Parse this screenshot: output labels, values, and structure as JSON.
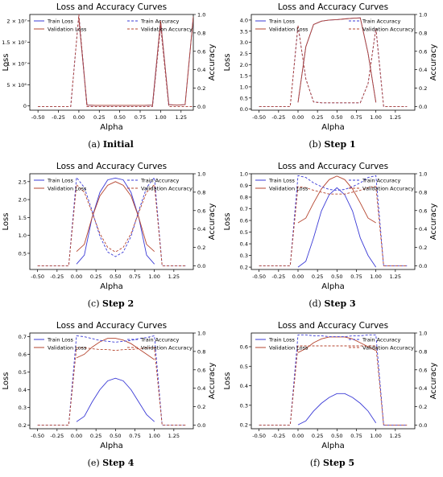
{
  "figure": {
    "alpha": [
      -0.5,
      -0.4,
      -0.3,
      -0.2,
      -0.1,
      0.0,
      0.1,
      0.2,
      0.3,
      0.4,
      0.5,
      0.6,
      0.7,
      0.8,
      0.9,
      1.0,
      1.1,
      1.2,
      1.3,
      1.4
    ],
    "legend": {
      "train_loss": "Train Loss",
      "val_loss": "Validation Loss",
      "train_acc": "Train Accuracy",
      "val_acc": "Validation Accuracy"
    },
    "colors": {
      "train_loss": "#3b3bd6",
      "val_loss": "#b5452f",
      "train_acc": "#3b3bd6",
      "val_acc": "#b5452f"
    }
  },
  "chart_data": [
    {
      "type": "line",
      "title": "Loss and Accuracy Curves",
      "caption_label": "(a)",
      "caption_text": "Initial",
      "xlabel": "Alpha",
      "ylabel": "Loss",
      "y2label": "Accuracy",
      "xlim": [
        -0.6,
        1.4
      ],
      "ylim": [
        -1000000.0,
        21500000.0
      ],
      "y2lim": [
        -0.04,
        1.0
      ],
      "xticks": [
        -0.5,
        -0.25,
        0.0,
        0.25,
        0.5,
        0.75,
        1.0,
        1.25
      ],
      "xtick_labels": [
        "-0.50",
        "-0.25",
        "0.00",
        "0.25",
        "0.50",
        "0.75",
        "1.00",
        "1.25"
      ],
      "yticks": [
        0,
        5000000,
        10000000,
        15000000,
        20000000
      ],
      "ytick_labels": [
        "0",
        "5 × 10⁶",
        "1 × 10⁷",
        "1.5 × 10⁷",
        "2 × 10⁷"
      ],
      "y2ticks": [
        0.0,
        0.2,
        0.4,
        0.6,
        0.8,
        1.0
      ],
      "y2tick_labels": [
        "0.0",
        "0.2",
        "0.4",
        "0.6",
        "0.8",
        "1.0"
      ],
      "legend_loc": "top",
      "loss_x": [
        0.0,
        0.1,
        0.2,
        0.3,
        0.4,
        0.5,
        0.6,
        0.7,
        0.8,
        0.9,
        1.0,
        1.1,
        1.2,
        1.3,
        1.4
      ],
      "train_loss": [
        20500000,
        200000,
        150000,
        150000,
        150000,
        150000,
        150000,
        150000,
        150000,
        200000,
        20000000,
        300000,
        200000,
        300000,
        21000000
      ],
      "val_loss": [
        20500000,
        200000,
        150000,
        150000,
        150000,
        150000,
        150000,
        150000,
        150000,
        200000,
        20000000,
        300000,
        200000,
        300000,
        21000000
      ],
      "train_acc": [
        0.0,
        0.0,
        0.0,
        0.0,
        0.0,
        1.0,
        0.0,
        0.0,
        0.0,
        0.0,
        0.0,
        0.0,
        0.0,
        0.0,
        0.0,
        0.88,
        0.0,
        0.0,
        0.0,
        0.0
      ],
      "val_acc": [
        0.0,
        0.0,
        0.0,
        0.0,
        0.0,
        1.0,
        0.0,
        0.0,
        0.0,
        0.0,
        0.0,
        0.0,
        0.0,
        0.0,
        0.0,
        0.88,
        0.0,
        0.0,
        0.0,
        0.0
      ]
    },
    {
      "type": "line",
      "title": "Loss and Accuracy Curves",
      "caption_label": "(b)",
      "caption_text": "Step 1",
      "xlabel": "Alpha",
      "ylabel": "Loss",
      "y2label": "Accuracy",
      "xlim": [
        -0.6,
        1.5
      ],
      "ylim": [
        -0.05,
        4.25
      ],
      "y2lim": [
        -0.04,
        1.0
      ],
      "xticks": [
        -0.5,
        -0.25,
        0.0,
        0.25,
        0.5,
        0.75,
        1.0,
        1.25
      ],
      "xtick_labels": [
        "-0.50",
        "-0.25",
        "0.00",
        "0.25",
        "0.50",
        "0.75",
        "1.00",
        "1.25"
      ],
      "yticks": [
        0.0,
        0.5,
        1.0,
        1.5,
        2.0,
        2.5,
        3.0,
        3.5,
        4.0
      ],
      "ytick_labels": [
        "0.0",
        "0.5",
        "1.0",
        "1.5",
        "2.0",
        "2.5",
        "3.0",
        "3.5",
        "4.0"
      ],
      "y2ticks": [
        0.0,
        0.2,
        0.4,
        0.6,
        0.8,
        1.0
      ],
      "y2tick_labels": [
        "0.0",
        "0.2",
        "0.4",
        "0.6",
        "0.8",
        "1.0"
      ],
      "legend_loc": "top",
      "loss_x": [
        0.0,
        0.1,
        0.2,
        0.3,
        0.4,
        0.5,
        0.6,
        0.7,
        0.8,
        0.9,
        1.0
      ],
      "train_loss": [
        0.3,
        2.8,
        3.8,
        3.95,
        4.0,
        4.02,
        4.05,
        4.08,
        4.1,
        2.5,
        0.3
      ],
      "val_loss": [
        0.3,
        2.8,
        3.8,
        3.95,
        4.0,
        4.02,
        4.05,
        4.08,
        4.1,
        2.5,
        0.3
      ],
      "train_acc": [
        0.0,
        0.0,
        0.0,
        0.0,
        0.0,
        0.88,
        0.3,
        0.05,
        0.04,
        0.04,
        0.04,
        0.04,
        0.04,
        0.04,
        0.25,
        0.85,
        0.0,
        0.0,
        0.0,
        0.0
      ],
      "val_acc": [
        0.0,
        0.0,
        0.0,
        0.0,
        0.0,
        0.88,
        0.3,
        0.05,
        0.04,
        0.04,
        0.04,
        0.04,
        0.04,
        0.04,
        0.25,
        0.85,
        0.0,
        0.0,
        0.0,
        0.0
      ]
    },
    {
      "type": "line",
      "title": "Loss and Accuracy Curves",
      "caption_label": "(c)",
      "caption_text": "Step 2",
      "xlabel": "Alpha",
      "ylabel": "Loss",
      "y2label": "Accuracy",
      "xlim": [
        -0.6,
        1.5
      ],
      "ylim": [
        0.05,
        2.72
      ],
      "y2lim": [
        -0.04,
        1.0
      ],
      "xticks": [
        -0.5,
        -0.25,
        0.0,
        0.25,
        0.5,
        0.75,
        1.0,
        1.25
      ],
      "xtick_labels": [
        "-0.50",
        "-0.25",
        "0.00",
        "0.25",
        "0.50",
        "0.75",
        "1.00",
        "1.25"
      ],
      "yticks": [
        0.5,
        1.0,
        1.5,
        2.0,
        2.5
      ],
      "ytick_labels": [
        "0.5",
        "1.0",
        "1.5",
        "2.0",
        "2.5"
      ],
      "y2ticks": [
        0.0,
        0.2,
        0.4,
        0.6,
        0.8,
        1.0
      ],
      "y2tick_labels": [
        "0.0",
        "0.2",
        "0.4",
        "0.6",
        "0.8",
        "1.0"
      ],
      "legend_loc": "top",
      "loss_x": [
        0.0,
        0.1,
        0.2,
        0.3,
        0.4,
        0.5,
        0.6,
        0.7,
        0.8,
        0.9,
        1.0
      ],
      "train_loss": [
        0.2,
        0.45,
        1.5,
        2.2,
        2.55,
        2.6,
        2.55,
        2.2,
        1.5,
        0.45,
        0.2
      ],
      "val_loss": [
        0.55,
        0.75,
        1.5,
        2.1,
        2.4,
        2.5,
        2.4,
        2.1,
        1.5,
        0.75,
        0.55
      ],
      "train_acc": [
        0.0,
        0.0,
        0.0,
        0.0,
        0.0,
        0.96,
        0.85,
        0.6,
        0.32,
        0.15,
        0.1,
        0.15,
        0.32,
        0.6,
        0.85,
        0.96,
        0.0,
        0.0,
        0.0,
        0.0
      ],
      "val_acc": [
        0.0,
        0.0,
        0.0,
        0.0,
        0.0,
        0.88,
        0.8,
        0.58,
        0.35,
        0.2,
        0.15,
        0.2,
        0.35,
        0.58,
        0.8,
        0.88,
        0.0,
        0.0,
        0.0,
        0.0
      ]
    },
    {
      "type": "line",
      "title": "Loss and Accuracy Curves",
      "caption_label": "(d)",
      "caption_text": "Step 3",
      "xlabel": "Alpha",
      "ylabel": "Loss",
      "y2label": "Accuracy",
      "xlim": [
        -0.6,
        1.5
      ],
      "ylim": [
        0.18,
        1.0
      ],
      "y2lim": [
        -0.04,
        1.0
      ],
      "xticks": [
        -0.5,
        -0.25,
        0.0,
        0.25,
        0.5,
        0.75,
        1.0,
        1.25
      ],
      "xtick_labels": [
        "-0.50",
        "-0.25",
        "0.00",
        "0.25",
        "0.50",
        "0.75",
        "1.00",
        "1.25"
      ],
      "yticks": [
        0.2,
        0.3,
        0.4,
        0.5,
        0.6,
        0.7,
        0.8,
        0.9,
        1.0
      ],
      "ytick_labels": [
        "0.2",
        "0.3",
        "0.4",
        "0.5",
        "0.6",
        "0.7",
        "0.8",
        "0.9",
        "1.0"
      ],
      "y2ticks": [
        0.0,
        0.2,
        0.4,
        0.6,
        0.8,
        1.0
      ],
      "y2tick_labels": [
        "0.0",
        "0.2",
        "0.4",
        "0.6",
        "0.8",
        "1.0"
      ],
      "legend_loc": "top",
      "loss_x": [
        0.0,
        0.1,
        0.2,
        0.3,
        0.4,
        0.5,
        0.6,
        0.7,
        0.8,
        0.9,
        1.0
      ],
      "train_loss": [
        0.2,
        0.25,
        0.45,
        0.68,
        0.82,
        0.88,
        0.82,
        0.68,
        0.45,
        0.3,
        0.2
      ],
      "val_loss": [
        0.58,
        0.62,
        0.75,
        0.87,
        0.95,
        0.98,
        0.95,
        0.87,
        0.75,
        0.62,
        0.58
      ],
      "train_acc": [
        0.0,
        0.0,
        0.0,
        0.0,
        0.0,
        0.98,
        0.96,
        0.9,
        0.86,
        0.83,
        0.82,
        0.83,
        0.86,
        0.9,
        0.96,
        0.98,
        0.0,
        0.0,
        0.0,
        0.0
      ],
      "val_acc": [
        0.0,
        0.0,
        0.0,
        0.0,
        0.0,
        0.86,
        0.85,
        0.82,
        0.8,
        0.78,
        0.78,
        0.78,
        0.8,
        0.82,
        0.85,
        0.86,
        0.0,
        0.0,
        0.0,
        0.0
      ]
    },
    {
      "type": "line",
      "title": "Loss and Accuracy Curves",
      "caption_label": "(e)",
      "caption_text": "Step 4",
      "xlabel": "Alpha",
      "ylabel": "Loss",
      "y2label": "Accuracy",
      "xlim": [
        -0.6,
        1.5
      ],
      "ylim": [
        0.18,
        0.72
      ],
      "y2lim": [
        -0.04,
        1.0
      ],
      "xticks": [
        -0.5,
        -0.25,
        0.0,
        0.25,
        0.5,
        0.75,
        1.0,
        1.25
      ],
      "xtick_labels": [
        "-0.50",
        "-0.25",
        "0.00",
        "0.25",
        "0.50",
        "0.75",
        "1.00",
        "1.25"
      ],
      "yticks": [
        0.2,
        0.3,
        0.4,
        0.5,
        0.6,
        0.7
      ],
      "ytick_labels": [
        "0.2",
        "0.3",
        "0.4",
        "0.5",
        "0.6",
        "0.7"
      ],
      "y2ticks": [
        0.0,
        0.2,
        0.4,
        0.6,
        0.8,
        1.0
      ],
      "y2tick_labels": [
        "0.0",
        "0.2",
        "0.4",
        "0.6",
        "0.8",
        "1.0"
      ],
      "legend_loc": "top",
      "loss_x": [
        0.0,
        0.1,
        0.2,
        0.3,
        0.4,
        0.5,
        0.6,
        0.7,
        0.8,
        0.9,
        1.0
      ],
      "train_loss": [
        0.22,
        0.25,
        0.33,
        0.4,
        0.45,
        0.465,
        0.45,
        0.4,
        0.33,
        0.26,
        0.22
      ],
      "val_loss": [
        0.58,
        0.6,
        0.64,
        0.67,
        0.69,
        0.69,
        0.68,
        0.66,
        0.63,
        0.6,
        0.57
      ],
      "train_acc": [
        0.0,
        0.0,
        0.0,
        0.0,
        0.0,
        0.97,
        0.96,
        0.94,
        0.92,
        0.91,
        0.9,
        0.91,
        0.92,
        0.94,
        0.95,
        0.97,
        0.0,
        0.0,
        0.0,
        0.0
      ],
      "val_acc": [
        0.0,
        0.0,
        0.0,
        0.0,
        0.0,
        0.84,
        0.84,
        0.83,
        0.82,
        0.82,
        0.81,
        0.82,
        0.82,
        0.83,
        0.84,
        0.84,
        0.0,
        0.0,
        0.0,
        0.0
      ]
    },
    {
      "type": "line",
      "title": "Loss and Accuracy Curves",
      "caption_label": "(f)",
      "caption_text": "Step 5",
      "xlabel": "Alpha",
      "ylabel": "Loss",
      "y2label": "Accuracy",
      "xlim": [
        -0.6,
        1.5
      ],
      "ylim": [
        0.18,
        0.67
      ],
      "y2lim": [
        -0.04,
        1.0
      ],
      "xticks": [
        -0.5,
        -0.25,
        0.0,
        0.25,
        0.5,
        0.75,
        1.0,
        1.25
      ],
      "xtick_labels": [
        "-0.50",
        "-0.25",
        "0.00",
        "0.25",
        "0.50",
        "0.75",
        "1.00",
        "1.25"
      ],
      "yticks": [
        0.2,
        0.3,
        0.4,
        0.5,
        0.6
      ],
      "ytick_labels": [
        "0.2",
        "0.3",
        "0.4",
        "0.5",
        "0.6"
      ],
      "y2ticks": [
        0.0,
        0.2,
        0.4,
        0.6,
        0.8,
        1.0
      ],
      "y2tick_labels": [
        "0.0",
        "0.2",
        "0.4",
        "0.6",
        "0.8",
        "1.0"
      ],
      "legend_loc": "top",
      "loss_x": [
        0.0,
        0.1,
        0.2,
        0.3,
        0.4,
        0.5,
        0.6,
        0.7,
        0.8,
        0.9,
        1.0
      ],
      "train_loss": [
        0.2,
        0.22,
        0.27,
        0.31,
        0.34,
        0.36,
        0.36,
        0.34,
        0.31,
        0.27,
        0.21
      ],
      "val_loss": [
        0.57,
        0.59,
        0.62,
        0.64,
        0.65,
        0.65,
        0.65,
        0.64,
        0.62,
        0.6,
        0.58
      ],
      "train_acc": [
        0.0,
        0.0,
        0.0,
        0.0,
        0.0,
        0.98,
        0.98,
        0.97,
        0.97,
        0.96,
        0.96,
        0.96,
        0.97,
        0.97,
        0.98,
        0.98,
        0.0,
        0.0,
        0.0,
        0.0
      ],
      "val_acc": [
        0.0,
        0.0,
        0.0,
        0.0,
        0.0,
        0.86,
        0.86,
        0.86,
        0.86,
        0.86,
        0.86,
        0.86,
        0.86,
        0.86,
        0.86,
        0.86,
        0.0,
        0.0,
        0.0,
        0.0
      ]
    }
  ]
}
